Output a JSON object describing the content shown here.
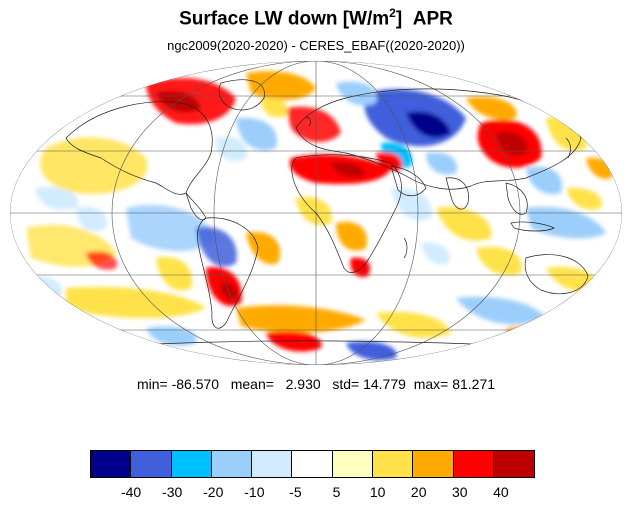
{
  "title": {
    "main": "Surface LW down [W/m",
    "sup": "2",
    "close": "]",
    "month": "APR"
  },
  "subtitle": "ngc2009(2020-2020) - CERES_EBAF((2020-2020))",
  "stats": {
    "min_label": "min=",
    "min": "-86.570",
    "mean_label": "mean=",
    "mean": "2.930",
    "std_label": "std=",
    "std": "14.779",
    "max_label": "max=",
    "max": "81.271"
  },
  "colorbar": {
    "colors": [
      "#00008b",
      "#3f5fdc",
      "#00c0ff",
      "#9ccefb",
      "#d2ecff",
      "#ffffff",
      "#ffffc0",
      "#ffe24a",
      "#ffaa00",
      "#ff0000",
      "#c00000"
    ],
    "labels": [
      "-40",
      "-30",
      "-20",
      "-10",
      "-5",
      "5",
      "10",
      "20",
      "30",
      "40"
    ]
  },
  "map": {
    "projection": "mollweide",
    "field_colors": {
      "strong_negative": "#00008b",
      "negative": "#3f5fdc",
      "moderate_negative": "#00c0ff",
      "weak_negative": "#9ccefb",
      "slight_negative": "#d2ecff",
      "neutral": "#ffffff",
      "slight_positive": "#ffffc0",
      "weak_positive": "#ffe24a",
      "positive": "#ffaa00",
      "strong_positive": "#ff0000",
      "very_strong_positive": "#c00000"
    }
  }
}
